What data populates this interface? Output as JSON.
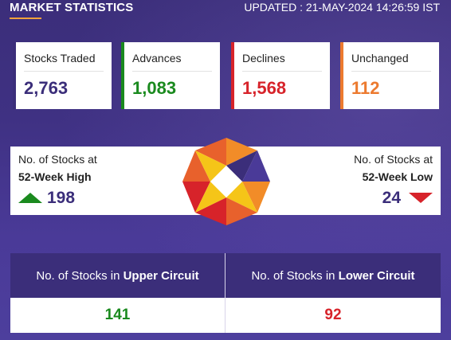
{
  "header": {
    "title": "MARKET STATISTICS",
    "updated": "UPDATED : 21-MAY-2024 14:26:59 IST"
  },
  "cards": [
    {
      "label": "Stocks Traded",
      "value": "2,763",
      "accent": "#3b2e7a",
      "value_color": "#3b2e7a"
    },
    {
      "label": "Advances",
      "value": "1,083",
      "accent": "#1a8a1e",
      "value_color": "#1a8a1e"
    },
    {
      "label": "Declines",
      "value": "1,568",
      "accent": "#d7232a",
      "value_color": "#d7232a"
    },
    {
      "label": "Unchanged",
      "value": "112",
      "accent": "#ec7a2f",
      "value_color": "#ec7a2f"
    }
  ],
  "week52": {
    "high": {
      "line1": "No. of Stocks at",
      "line2": "52-Week High",
      "value": "198"
    },
    "low": {
      "line1": "No. of Stocks at",
      "line2": "52-Week Low",
      "value": "24"
    }
  },
  "circuits": {
    "upper": {
      "prefix": "No. of Stocks in ",
      "emphasis": "Upper Circuit",
      "value": "141",
      "color": "#1a8a1e"
    },
    "lower": {
      "prefix": "No. of Stocks in ",
      "emphasis": "Lower Circuit",
      "value": "92",
      "color": "#d7232a"
    }
  },
  "icons": {
    "logo": "nse-logo-icon",
    "up": "triangle-up-icon",
    "down": "triangle-down-icon"
  }
}
